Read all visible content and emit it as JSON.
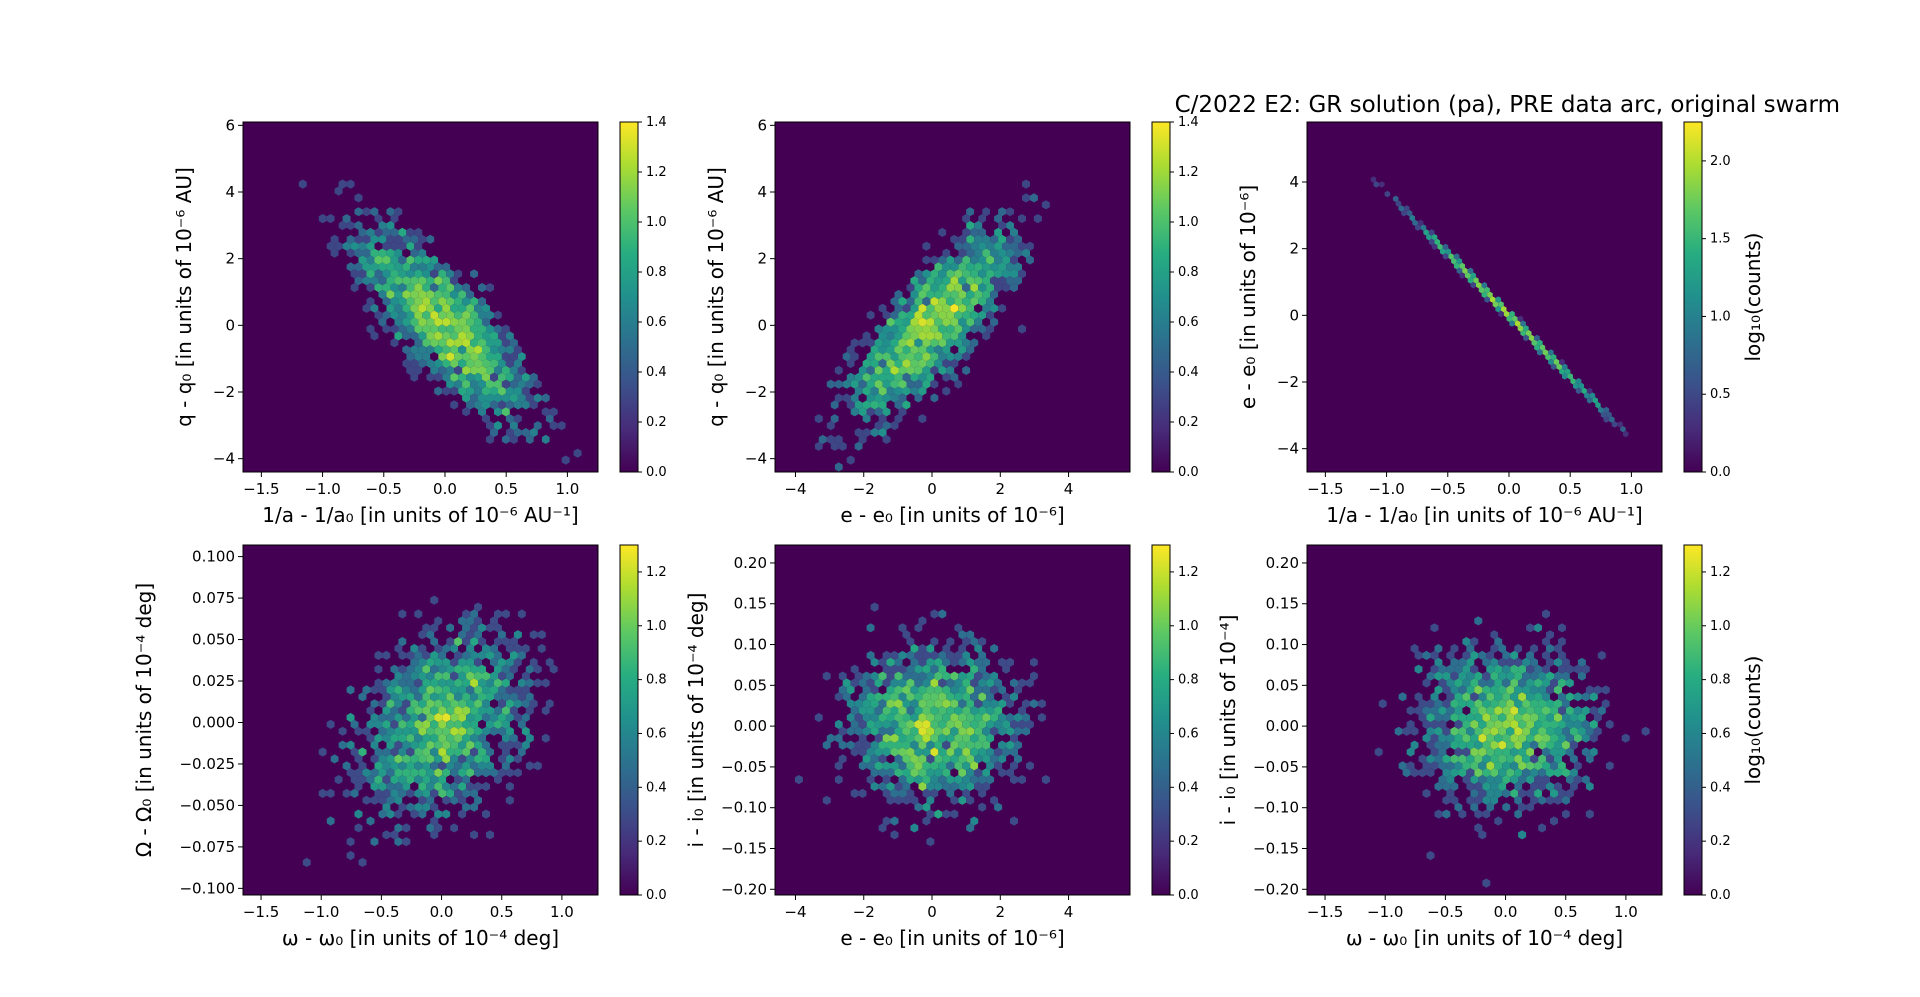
{
  "figure": {
    "title": "C/2022 E2: GR solution (pa), PRE data arc, original swarm",
    "colormap": "viridis",
    "background_color": "#440154"
  },
  "chart_data": [
    {
      "id": "p1",
      "type": "heatmap",
      "subtype": "hexbin",
      "xlabel": "1/a - 1/a₀ [in units of 10⁻⁶ AU⁻¹]",
      "ylabel": "q - q₀ [in units of 10⁻⁶ AU]",
      "xlim": [
        -1.65,
        1.25
      ],
      "ylim": [
        -4.4,
        6.1
      ],
      "xticks": [
        -1.5,
        -1.0,
        -0.5,
        0.0,
        0.5,
        1.0
      ],
      "xtick_labels": [
        "−1.5",
        "−1.0",
        "−0.5",
        "0.0",
        "0.5",
        "1.0"
      ],
      "yticks": [
        -4,
        -2,
        0,
        2,
        4,
        6
      ],
      "ytick_labels": [
        "−4",
        "−2",
        "0",
        "2",
        "4",
        "6"
      ],
      "distribution": {
        "mean": [
          0.0,
          0.0
        ],
        "sd": [
          0.38,
          1.6
        ],
        "corr": -0.8,
        "n_points": 2500
      },
      "colorbar": {
        "min": 0.0,
        "max": 1.4,
        "ticks": [
          "0.0",
          "0.2",
          "0.4",
          "0.6",
          "0.8",
          "1.0",
          "1.2",
          "1.4"
        ],
        "label": ""
      }
    },
    {
      "id": "p2",
      "type": "heatmap",
      "subtype": "hexbin",
      "xlabel": "e - e₀ [in units of 10⁻⁶]",
      "ylabel": "q - q₀ [in units of 10⁻⁶ AU]",
      "xlim": [
        -4.6,
        5.8
      ],
      "ylim": [
        -4.4,
        6.1
      ],
      "xticks": [
        -4,
        -2,
        0,
        2,
        4
      ],
      "xtick_labels": [
        "−4",
        "−2",
        "0",
        "2",
        "4"
      ],
      "yticks": [
        -4,
        -2,
        0,
        2,
        4,
        6
      ],
      "ytick_labels": [
        "−4",
        "−2",
        "0",
        "2",
        "4",
        "6"
      ],
      "distribution": {
        "mean": [
          0.0,
          0.0
        ],
        "sd": [
          1.35,
          1.6
        ],
        "corr": 0.8,
        "n_points": 2500
      },
      "colorbar": {
        "min": 0.0,
        "max": 1.4,
        "ticks": [
          "0.0",
          "0.2",
          "0.4",
          "0.6",
          "0.8",
          "1.0",
          "1.2",
          "1.4"
        ],
        "label": ""
      }
    },
    {
      "id": "p3",
      "type": "heatmap",
      "subtype": "hexbin",
      "xlabel": "1/a - 1/a₀ [in units of 10⁻⁶ AU⁻¹]",
      "ylabel": "e - e₀ [in units of 10⁻⁶]",
      "xlim": [
        -1.65,
        1.25
      ],
      "ylim": [
        -4.7,
        5.8
      ],
      "xticks": [
        -1.5,
        -1.0,
        -0.5,
        0.0,
        0.5,
        1.0
      ],
      "xtick_labels": [
        "−1.5",
        "−1.0",
        "−0.5",
        "0.0",
        "0.5",
        "1.0"
      ],
      "yticks": [
        -4,
        -2,
        0,
        2,
        4
      ],
      "ytick_labels": [
        "−4",
        "−2",
        "0",
        "2",
        "4"
      ],
      "distribution": {
        "line": {
          "slope": -3.7,
          "intercept": 0.0
        },
        "x_sd": 0.38,
        "x_range": [
          -1.1,
          1.0
        ],
        "n_points": 2500
      },
      "colorbar": {
        "min": 0.0,
        "max": 2.25,
        "ticks": [
          "0.0",
          "0.5",
          "1.0",
          "1.5",
          "2.0"
        ],
        "tick_values": [
          0.0,
          0.5,
          1.0,
          1.5,
          2.0
        ],
        "label": "log₁₀(counts)"
      }
    },
    {
      "id": "p4",
      "type": "heatmap",
      "subtype": "hexbin",
      "xlabel": "ω - ω₀ [in units of 10⁻⁴ deg]",
      "ylabel": "Ω - Ω₀ [in units of 10⁻⁴ deg]",
      "xlim": [
        -1.65,
        1.3
      ],
      "ylim": [
        -0.104,
        0.107
      ],
      "xticks": [
        -1.5,
        -1.0,
        -0.5,
        0.0,
        0.5,
        1.0
      ],
      "xtick_labels": [
        "−1.5",
        "−1.0",
        "−0.5",
        "0.0",
        "0.5",
        "1.0"
      ],
      "yticks": [
        -0.1,
        -0.075,
        -0.05,
        -0.025,
        0.0,
        0.025,
        0.05,
        0.075,
        0.1
      ],
      "ytick_labels": [
        "−0.100",
        "−0.075",
        "−0.050",
        "−0.025",
        "0.000",
        "0.025",
        "0.050",
        "0.075",
        "0.100"
      ],
      "distribution": {
        "mean": [
          0.0,
          0.0
        ],
        "sd": [
          0.4,
          0.032
        ],
        "corr": 0.35,
        "n_points": 2500
      },
      "colorbar": {
        "min": 0.0,
        "max": 1.3,
        "ticks": [
          "0.0",
          "0.2",
          "0.4",
          "0.6",
          "0.8",
          "1.0",
          "1.2"
        ],
        "label": ""
      }
    },
    {
      "id": "p5",
      "type": "heatmap",
      "subtype": "hexbin",
      "xlabel": "e - e₀ [in units of 10⁻⁶]",
      "ylabel": "i - i₀ [in units of 10⁻⁴ deg]",
      "xlim": [
        -4.6,
        5.8
      ],
      "ylim": [
        -0.207,
        0.222
      ],
      "xticks": [
        -4,
        -2,
        0,
        2,
        4
      ],
      "xtick_labels": [
        "−4",
        "−2",
        "0",
        "2",
        "4"
      ],
      "yticks": [
        -0.2,
        -0.15,
        -0.1,
        -0.05,
        0.0,
        0.05,
        0.1,
        0.15,
        0.2
      ],
      "ytick_labels": [
        "−0.20",
        "−0.15",
        "−0.10",
        "−0.05",
        "0.00",
        "0.05",
        "0.10",
        "0.15",
        "0.20"
      ],
      "distribution": {
        "mean": [
          0.0,
          0.0
        ],
        "sd": [
          1.4,
          0.055
        ],
        "corr": 0.0,
        "n_points": 2500
      },
      "colorbar": {
        "min": 0.0,
        "max": 1.3,
        "ticks": [
          "0.0",
          "0.2",
          "0.4",
          "0.6",
          "0.8",
          "1.0",
          "1.2"
        ],
        "label": ""
      }
    },
    {
      "id": "p6",
      "type": "heatmap",
      "subtype": "hexbin",
      "xlabel": "ω - ω₀ [in units of 10⁻⁴ deg]",
      "ylabel": "i - i₀ [in units of 10⁻⁴]",
      "xlim": [
        -1.65,
        1.3
      ],
      "ylim": [
        -0.207,
        0.222
      ],
      "xticks": [
        -1.5,
        -1.0,
        -0.5,
        0.0,
        0.5,
        1.0
      ],
      "xtick_labels": [
        "−1.5",
        "−1.0",
        "−0.5",
        "0.0",
        "0.5",
        "1.0"
      ],
      "yticks": [
        -0.2,
        -0.15,
        -0.1,
        -0.05,
        0.0,
        0.05,
        0.1,
        0.15,
        0.2
      ],
      "ytick_labels": [
        "−0.20",
        "−0.15",
        "−0.10",
        "−0.05",
        "0.00",
        "0.05",
        "0.10",
        "0.15",
        "0.20"
      ],
      "distribution": {
        "mean": [
          0.0,
          0.0
        ],
        "sd": [
          0.4,
          0.055
        ],
        "corr": 0.0,
        "n_points": 2500
      },
      "colorbar": {
        "min": 0.0,
        "max": 1.3,
        "ticks": [
          "0.0",
          "0.2",
          "0.4",
          "0.6",
          "0.8",
          "1.0",
          "1.2"
        ],
        "label": "log₁₀(counts)"
      }
    }
  ]
}
